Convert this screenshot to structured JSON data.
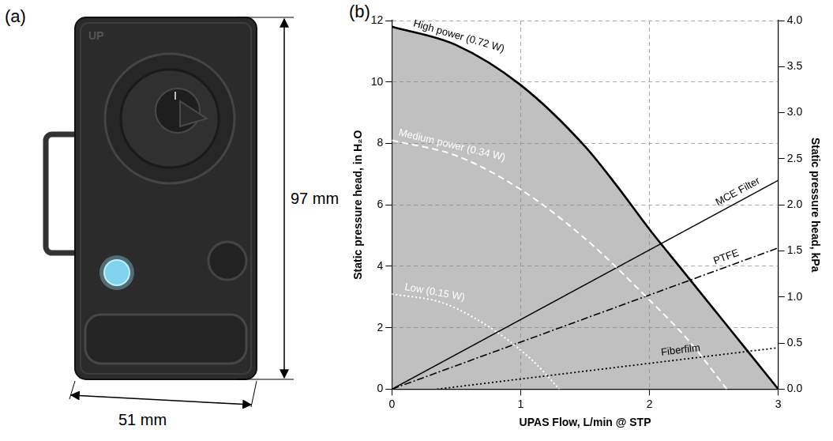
{
  "panel_a": {
    "label": "(a)",
    "device_text": "UP",
    "height": "97 mm",
    "width": "51 mm"
  },
  "chart_data": {
    "type": "line",
    "label": "(b)",
    "x_label": "UPAS Flow, L/min @ STP",
    "y_label": "Static pressure head, in H₂O",
    "y2_label": "Static pressure head, kPa",
    "xlim": [
      0,
      3
    ],
    "xticks": [
      0,
      1,
      2,
      3
    ],
    "ylim": [
      0,
      12
    ],
    "yticks": [
      0,
      2,
      4,
      6,
      8,
      10,
      12
    ],
    "y2lim": [
      0,
      4
    ],
    "y2ticks": [
      {
        "value": 0,
        "label": "0.0"
      },
      0.5,
      {
        "value": 1,
        "label": "1.0"
      },
      1.5,
      {
        "value": 2,
        "label": "2.0"
      },
      2.5,
      {
        "value": 3,
        "label": "3.0"
      },
      3.5,
      {
        "value": 4,
        "label": "4.0"
      }
    ],
    "grid": true,
    "series": [
      {
        "name": "High power (0.72 W)",
        "type": "area",
        "color": "#000000",
        "line_style": "solid",
        "x": [
          0,
          0.5,
          1.0,
          1.5,
          1.75,
          2.0,
          2.25,
          2.5,
          2.75,
          3.0
        ],
        "values": [
          11.8,
          11.2,
          9.9,
          7.9,
          6.6,
          5.2,
          3.9,
          2.6,
          1.3,
          0
        ]
      },
      {
        "name": "Medium power (0.34 W)",
        "type": "line",
        "color": "#ffffff",
        "line_style": "dashed",
        "x": [
          0,
          0.5,
          1.0,
          1.5,
          2.0,
          2.3,
          2.6
        ],
        "values": [
          8.1,
          7.6,
          6.5,
          4.9,
          2.9,
          1.6,
          0
        ]
      },
      {
        "name": "Low (0.15 W)",
        "type": "line",
        "color": "#ffffff",
        "line_style": "dotted",
        "x": [
          0,
          0.4,
          0.8,
          1.1,
          1.3
        ],
        "values": [
          3.1,
          2.8,
          1.9,
          0.9,
          0
        ]
      },
      {
        "name": "MCE Filter",
        "type": "line",
        "color": "#000000",
        "line_style": "solid",
        "x": [
          0,
          3
        ],
        "values": [
          0,
          6.8
        ]
      },
      {
        "name": "PTFE",
        "type": "line",
        "color": "#000000",
        "line_style": "dashdot",
        "x": [
          0,
          3
        ],
        "values": [
          0,
          4.6
        ]
      },
      {
        "name": "Fiberfilm",
        "type": "line",
        "color": "#000000",
        "line_style": "dotted",
        "x": [
          0.35,
          3
        ],
        "values": [
          0,
          1.35
        ]
      }
    ]
  }
}
